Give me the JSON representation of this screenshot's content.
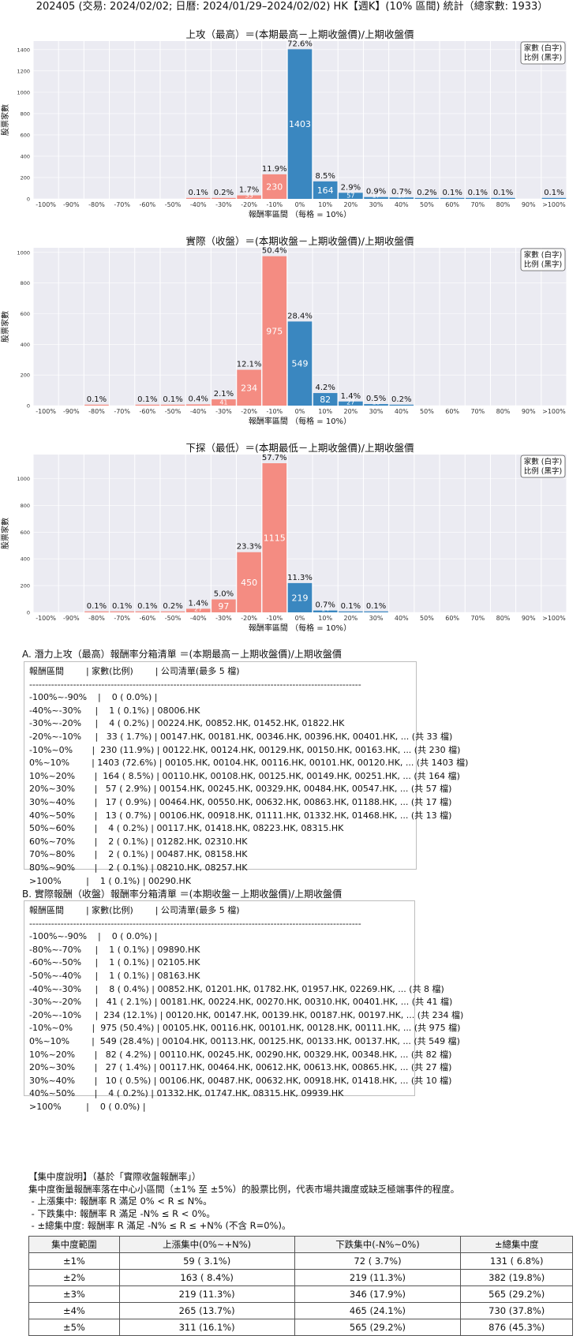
{
  "header": "202405 (交易: 2024/02/02; 日曆: 2024/01/29–2024/02/02) HK【週K】(10% 區間) 統計（總家數: 1933）",
  "legend_lines": [
    "家數 (白字)",
    "比例 (黑字)"
  ],
  "colors": {
    "neg": "#f48c82",
    "pos": "#3a87c0",
    "bg": "#ebebf2",
    "grid": "#ffffff"
  },
  "chart_data": [
    {
      "type": "bar",
      "title": "上攻（最高）＝(本期最高－上期收盤價)/上期收盤價",
      "xlabel": "報酬率區間 （每格 = 10%）",
      "ylabel": "股票家數",
      "categories": [
        "-100%",
        "-90%",
        "-80%",
        "-70%",
        "-60%",
        "-50%",
        "-40%",
        "-30%",
        "-20%",
        "-10%",
        "0%",
        "10%",
        "20%",
        "30%",
        "40%",
        "50%",
        "60%",
        "70%",
        "80%",
        "90%",
        ">100%"
      ],
      "counts": [
        0,
        0,
        0,
        0,
        0,
        0,
        1,
        4,
        33,
        230,
        1403,
        164,
        57,
        17,
        13,
        4,
        2,
        2,
        2,
        0,
        1
      ],
      "pct_labels": [
        "",
        "",
        "",
        "",
        "",
        "",
        "0.1%",
        "0.2%",
        "1.7%",
        "11.9%",
        "72.6%",
        "8.5%",
        "2.9%",
        "0.9%",
        "0.7%",
        "0.2%",
        "0.1%",
        "0.1%",
        "0.1%",
        "",
        "0.1%"
      ],
      "yticks": [
        0,
        200,
        400,
        600,
        800,
        1000,
        1200,
        1400
      ],
      "ylim": [
        0,
        1480
      ]
    },
    {
      "type": "bar",
      "title": "實際（收盤）＝(本期收盤－上期收盤價)/上期收盤價",
      "xlabel": "報酬率區間 （每格 = 10%）",
      "ylabel": "股票家數",
      "categories": [
        "-100%",
        "-90%",
        "-80%",
        "-70%",
        "-60%",
        "-50%",
        "-40%",
        "-30%",
        "-20%",
        "-10%",
        "0%",
        "10%",
        "20%",
        "30%",
        "40%",
        "50%",
        "60%",
        "70%",
        "80%",
        "90%",
        ">100%"
      ],
      "counts": [
        0,
        0,
        1,
        0,
        1,
        1,
        8,
        41,
        234,
        975,
        549,
        82,
        27,
        10,
        4,
        0,
        0,
        0,
        0,
        0,
        0
      ],
      "pct_labels": [
        "",
        "",
        "0.1%",
        "",
        "0.1%",
        "0.1%",
        "0.4%",
        "2.1%",
        "12.1%",
        "50.4%",
        "28.4%",
        "4.2%",
        "1.4%",
        "0.5%",
        "0.2%",
        "",
        "",
        "",
        "",
        "",
        ""
      ],
      "yticks": [
        0,
        200,
        400,
        600,
        800,
        1000
      ],
      "ylim": [
        0,
        1030
      ]
    },
    {
      "type": "bar",
      "title": "下探（最低）＝(本期最低－上期收盤價)/上期收盤價",
      "xlabel": "報酬率區間 （每格 = 10%）",
      "ylabel": "股票家數",
      "categories": [
        "-100%",
        "-90%",
        "-80%",
        "-70%",
        "-60%",
        "-50%",
        "-40%",
        "-30%",
        "-20%",
        "-10%",
        "0%",
        "10%",
        "20%",
        "30%",
        "40%",
        "50%",
        "60%",
        "70%",
        "80%",
        "90%",
        ">100%"
      ],
      "counts": [
        0,
        0,
        2,
        1,
        1,
        4,
        27,
        97,
        450,
        1115,
        219,
        14,
        2,
        1,
        0,
        0,
        0,
        0,
        0,
        0,
        0
      ],
      "pct_labels": [
        "",
        "",
        "0.1%",
        "0.1%",
        "0.1%",
        "0.2%",
        "1.4%",
        "5.0%",
        "23.3%",
        "57.7%",
        "11.3%",
        "0.7%",
        "0.1%",
        "0.1%",
        "",
        "",
        "",
        "",
        "",
        "",
        ""
      ],
      "yticks": [
        0,
        200,
        400,
        600,
        800,
        1000
      ],
      "ylim": [
        0,
        1180
      ]
    }
  ],
  "listA": {
    "title": "A. 潛力上攻（最高）報酬率分箱清單 ＝(本期最高－上期收盤價)/上期收盤價",
    "lines": [
      "報酬區間        | 家數(比例)        | 公司清單(最多 5 檔)",
      "----------------------------------------------------------------------------------------------------------",
      "-100%~-90%    |    0 ( 0.0%) |",
      "-40%~-30%     |    1 ( 0.1%) | 08006.HK",
      "-30%~-20%     |    4 ( 0.2%) | 00224.HK, 00852.HK, 01452.HK, 01822.HK",
      "-20%~-10%     |   33 ( 1.7%) | 00147.HK, 00181.HK, 00346.HK, 00396.HK, 00401.HK, ... (共 33 檔)",
      "-10%~0%       |  230 (11.9%) | 00122.HK, 00124.HK, 00129.HK, 00150.HK, 00163.HK, ... (共 230 檔)",
      "0%~10%        | 1403 (72.6%) | 00105.HK, 00104.HK, 00116.HK, 00101.HK, 00120.HK, ... (共 1403 檔)",
      "10%~20%       |  164 ( 8.5%) | 00110.HK, 00108.HK, 00125.HK, 00149.HK, 00251.HK, ... (共 164 檔)",
      "20%~30%       |   57 ( 2.9%) | 00154.HK, 00245.HK, 00329.HK, 00484.HK, 00547.HK, ... (共 57 檔)",
      "30%~40%       |   17 ( 0.9%) | 00464.HK, 00550.HK, 00632.HK, 00863.HK, 01188.HK, ... (共 17 檔)",
      "40%~50%       |   13 ( 0.7%) | 00106.HK, 00918.HK, 01111.HK, 01332.HK, 01468.HK, ... (共 13 檔)",
      "50%~60%       |    4 ( 0.2%) | 00117.HK, 01418.HK, 08223.HK, 08315.HK",
      "60%~70%       |    2 ( 0.1%) | 01282.HK, 02310.HK",
      "70%~80%       |    2 ( 0.1%) | 00487.HK, 08158.HK",
      "80%~90%       |    2 ( 0.1%) | 08210.HK, 08257.HK",
      ">100%         |    1 ( 0.1%) | 00290.HK"
    ]
  },
  "listB": {
    "title": "B. 實際報酬（收盤）報酬率分箱清單 ＝(本期收盤－上期收盤價)/上期收盤價",
    "lines": [
      "報酬區間        | 家數(比例)        | 公司清單(最多 5 檔)",
      "----------------------------------------------------------------------------------------------------------",
      "-100%~-90%    |    0 ( 0.0%) |",
      "-80%~-70%     |    1 ( 0.1%) | 09890.HK",
      "-60%~-50%     |    1 ( 0.1%) | 02105.HK",
      "-50%~-40%     |    1 ( 0.1%) | 08163.HK",
      "-40%~-30%     |    8 ( 0.4%) | 00852.HK, 01201.HK, 01782.HK, 01957.HK, 02269.HK, ... (共 8 檔)",
      "-30%~-20%     |   41 ( 2.1%) | 00181.HK, 00224.HK, 00270.HK, 00310.HK, 00401.HK, ... (共 41 檔)",
      "-20%~-10%     |  234 (12.1%) | 00120.HK, 00147.HK, 00139.HK, 00187.HK, 00197.HK, ... (共 234 檔)",
      "-10%~0%       |  975 (50.4%) | 00105.HK, 00116.HK, 00101.HK, 00128.HK, 00111.HK, ... (共 975 檔)",
      "0%~10%        |  549 (28.4%) | 00104.HK, 00113.HK, 00125.HK, 00133.HK, 00137.HK, ... (共 549 檔)",
      "10%~20%       |   82 ( 4.2%) | 00110.HK, 00245.HK, 00290.HK, 00329.HK, 00348.HK, ... (共 82 檔)",
      "20%~30%       |   27 ( 1.4%) | 00117.HK, 00464.HK, 00612.HK, 00613.HK, 00865.HK, ... (共 27 檔)",
      "30%~40%       |   10 ( 0.5%) | 00106.HK, 00487.HK, 00632.HK, 00918.HK, 01418.HK, ... (共 10 檔)",
      "40%~50%       |    4 ( 0.2%) | 01332.HK, 01747.HK, 08315.HK, 09939.HK",
      ">100%         |    0 ( 0.0%) |"
    ]
  },
  "concentration": {
    "lines": [
      "【集中度說明】（基於「實際收盤報酬率」）",
      "集中度衡量報酬率落在中心小區間（±1% 至 ±5%）的股票比例，代表市場共識度或缺乏極端事件的程度。",
      " - 上漲集中: 報酬率 R 滿足 0% < R ≤ N%。",
      " - 下跌集中: 報酬率 R 滿足 -N% ≤ R < 0%。",
      " - ±總集中度: 報酬率 R 滿足 -N% ≤ R ≤ +N% (不含 R=0%)。"
    ],
    "headers": [
      "集中度範圍",
      "上漲集中(0%~+N%)",
      "下跌集中(-N%~0%)",
      "±總集中度"
    ],
    "rows": [
      [
        "±1%",
        "59 ( 3.1%)",
        "72 ( 3.7%)",
        "131 ( 6.8%)"
      ],
      [
        "±2%",
        "163 ( 8.4%)",
        "219 (11.3%)",
        "382 (19.8%)"
      ],
      [
        "±3%",
        "219 (11.3%)",
        "346 (17.9%)",
        "565 (29.2%)"
      ],
      [
        "±4%",
        "265 (13.7%)",
        "465 (24.1%)",
        "730 (37.8%)"
      ],
      [
        "±5%",
        "311 (16.1%)",
        "565 (29.2%)",
        "876 (45.3%)"
      ]
    ]
  }
}
